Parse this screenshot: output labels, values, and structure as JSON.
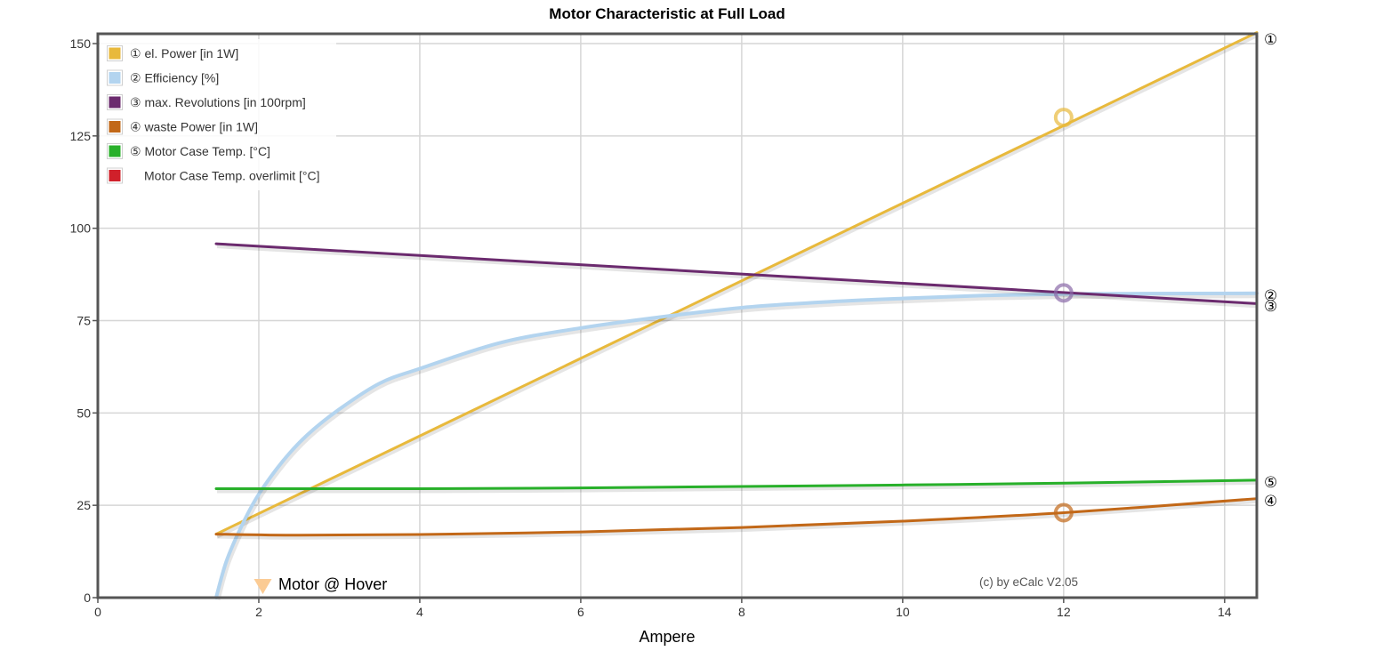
{
  "chart_data": {
    "type": "line",
    "title": "Motor Characteristic at Full Load",
    "xlabel": "Ampere",
    "ylabel": "",
    "xlim": [
      0,
      14.4
    ],
    "ylim": [
      0,
      152
    ],
    "x_ticks": [
      "0",
      "2",
      "4",
      "6",
      "8",
      "10",
      "12",
      "14"
    ],
    "y_ticks": [
      "0",
      "25",
      "50",
      "75",
      "100",
      "125",
      "150"
    ],
    "grid": true,
    "legend_position": "top-left",
    "series": [
      {
        "name": "① el. Power [in 1W]",
        "marker_label": "①",
        "color": "#e8b93c",
        "x": [
          1.47,
          14.4
        ],
        "y": [
          17.2,
          153
        ]
      },
      {
        "name": "② Efficiency [%]",
        "marker_label": "②",
        "color": "#b3d4ef",
        "x": [
          1.47,
          1.6,
          1.8,
          2.0,
          2.3,
          2.6,
          3.0,
          3.5,
          4.0,
          5.0,
          6.0,
          7.0,
          8.0,
          9.0,
          10.0,
          11.0,
          12.0,
          13.0,
          14.4
        ],
        "y": [
          0,
          10,
          20,
          28,
          37,
          44,
          51,
          58,
          62,
          69,
          73,
          76,
          78.5,
          80,
          81,
          81.8,
          82.2,
          82.3,
          82.4
        ]
      },
      {
        "name": "③ max. Revolutions [in 100rpm]",
        "marker_label": "③",
        "color": "#6b2a6e",
        "x": [
          1.47,
          14.4
        ],
        "y": [
          95.8,
          79.6
        ]
      },
      {
        "name": "④ waste Power [in 1W]",
        "marker_label": "④",
        "color": "#c26818",
        "x": [
          1.47,
          2.5,
          4.0,
          6.0,
          8.0,
          10.0,
          12.0,
          14.4
        ],
        "y": [
          17.2,
          16.9,
          17.1,
          17.8,
          19.0,
          20.7,
          23.0,
          26.8
        ]
      },
      {
        "name": "⑤ Motor Case Temp. [°C]",
        "marker_label": "⑤",
        "color": "#28b02a",
        "x": [
          1.47,
          4.0,
          6.0,
          8.0,
          10.0,
          12.0,
          14.4
        ],
        "y": [
          29.5,
          29.5,
          29.7,
          30.1,
          30.5,
          31.0,
          31.8
        ]
      },
      {
        "name": "Motor Case Temp. overlimit [°C]",
        "color": "#d0202a",
        "x": [],
        "y": []
      }
    ],
    "highlight_points": [
      {
        "series": "① el. Power [in 1W]",
        "x": 12,
        "y": 130
      },
      {
        "series": "② Efficiency [%]",
        "x": 12,
        "y": 82.5
      },
      {
        "series": "④ waste Power [in 1W]",
        "x": 12,
        "y": 23
      }
    ],
    "annotations": {
      "hover_label": "Motor @ Hover",
      "hover_x": 2.05,
      "hover_color": "#fbcb94",
      "copyright": "(c) by eCalc  V2.05"
    }
  }
}
